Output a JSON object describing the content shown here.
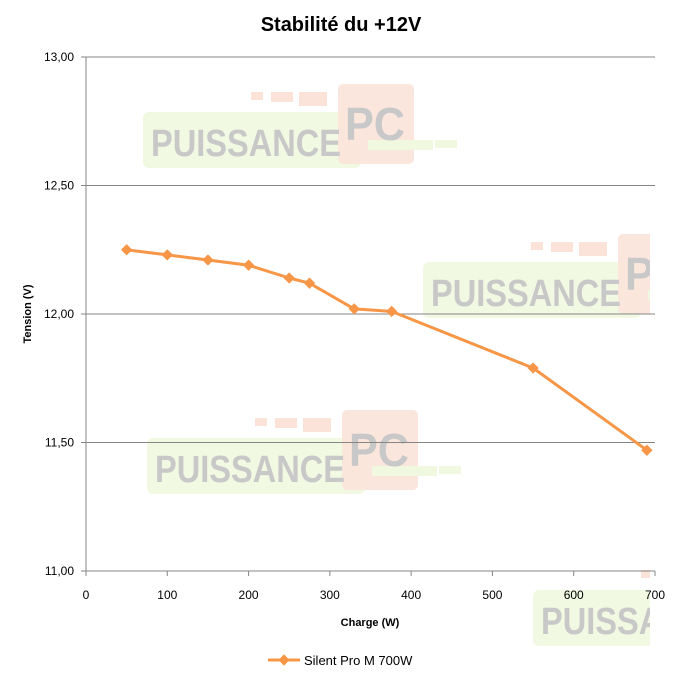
{
  "chart_data": {
    "type": "line",
    "title": "Stabilité du +12V",
    "xlabel": "Charge (W)",
    "ylabel": "Tension (V)",
    "xlim": [
      0,
      700
    ],
    "ylim": [
      11.0,
      13.0
    ],
    "x_ticks": [
      "0",
      "100",
      "200",
      "300",
      "400",
      "500",
      "600",
      "700"
    ],
    "x_tick_values": [
      0,
      100,
      200,
      300,
      400,
      500,
      600,
      700
    ],
    "y_ticks": [
      "13,00",
      "12,50",
      "12,00",
      "11,50",
      "11,00"
    ],
    "y_tick_values": [
      13.0,
      12.5,
      12.0,
      11.5,
      11.0
    ],
    "grid": {
      "horizontal": true,
      "vertical": false
    },
    "legend_position": "bottom",
    "series": [
      {
        "name": "Silent Pro M 700W",
        "color": "#f79646",
        "marker": "diamond",
        "x": [
          50,
          100,
          150,
          200,
          250,
          275,
          330,
          376,
          550,
          690
        ],
        "values": [
          12.25,
          12.23,
          12.21,
          12.19,
          12.14,
          12.12,
          12.02,
          12.01,
          11.79,
          11.47
        ]
      }
    ]
  },
  "watermark": {
    "text_main": "PUISSANCE",
    "text_badge": "PC"
  }
}
